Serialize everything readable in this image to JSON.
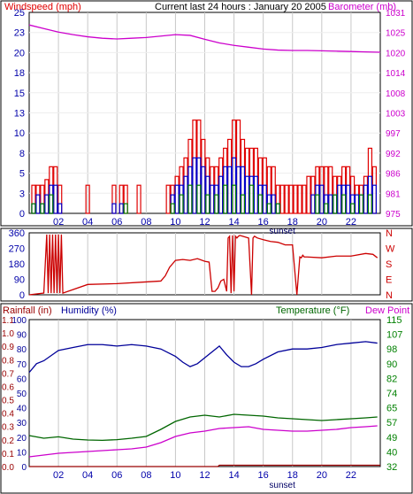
{
  "colors": {
    "wind_speed": "#e00000",
    "wind_gust": "#0000cc",
    "wind_green": "#008000",
    "barometer": "#cc00cc",
    "direction": "#cc0000",
    "humidity": "#000099",
    "temperature": "#006600",
    "dew_point": "#cc00cc",
    "rainfall": "#990000",
    "label_green": "#008000",
    "grid": "#c8c8c8",
    "axis_text": "#0000aa"
  },
  "top_panel": {
    "left_title": "Windspeed (mph)",
    "center_title": "Current last 24 hours : January 20 2005",
    "right_title": "Barometer (mb)",
    "left_ticks": [
      "0",
      "3",
      "5",
      "8",
      "10",
      "13",
      "15",
      "18",
      "20",
      "23",
      "25"
    ],
    "right_ticks": [
      "975",
      "981",
      "986",
      "992",
      "997",
      "1003",
      "1008",
      "1014",
      "1020",
      "1025",
      "1031"
    ],
    "x_ticks": [
      "02",
      "04",
      "06",
      "08",
      "10",
      "12",
      "14",
      "16",
      "18",
      "20",
      "22"
    ],
    "sunset_label": "sunset"
  },
  "mid_panel": {
    "left_ticks": [
      "0",
      "90",
      "180",
      "270",
      "360"
    ],
    "right_ticks": [
      "N",
      "E",
      "S",
      "W",
      "N"
    ]
  },
  "bottom_panel": {
    "left_title": "Rainfall (in)",
    "humidity_title": "Humidity (%)",
    "temp_title": "Temperature (°F)",
    "dew_title": "Dew Point",
    "rain_ticks": [
      "0.0",
      "0.1",
      "0.2",
      "0.3",
      "0.4",
      "0.5",
      "0.6",
      "0.7",
      "0.8",
      "0.9",
      "1.0",
      "1.1"
    ],
    "humidity_ticks": [
      "0",
      "10",
      "20",
      "30",
      "40",
      "50",
      "60",
      "70",
      "80",
      "90",
      "100"
    ],
    "right_ticks": [
      "32",
      "40",
      "49",
      "57",
      "65",
      "74",
      "82",
      "90",
      "98",
      "107",
      "115"
    ],
    "x_ticks": [
      "02",
      "04",
      "06",
      "08",
      "10",
      "12",
      "14",
      "16",
      "18",
      "20",
      "22"
    ],
    "sunset_label": "sunset"
  },
  "chart_data": [
    {
      "type": "bar",
      "title": "Current last 24 hours : January 20 2005",
      "xlabel": "",
      "ylabel": "Windspeed (mph)",
      "y2label": "Barometer (mb)",
      "x_unit": "hour",
      "xlim": [
        0,
        24
      ],
      "ylim": [
        0,
        25
      ],
      "y2lim": [
        975,
        1031
      ],
      "grid": true,
      "series": [
        {
          "name": "Windspeed (mph)",
          "kind": "bar",
          "x": [
            0.3,
            0.6,
            0.9,
            1.2,
            1.5,
            1.8,
            2.1,
            4.0,
            5.8,
            6.3,
            6.6,
            7.5,
            9.5,
            9.8,
            10.1,
            10.4,
            10.7,
            11.0,
            11.3,
            11.6,
            11.9,
            12.2,
            12.5,
            12.8,
            13.1,
            13.4,
            13.7,
            14.0,
            14.3,
            14.6,
            14.9,
            15.2,
            15.5,
            15.8,
            16.1,
            16.4,
            16.7,
            17.0,
            17.3,
            17.6,
            17.9,
            18.2,
            18.5,
            18.8,
            19.1,
            19.4,
            19.7,
            20.0,
            20.3,
            20.6,
            20.9,
            21.2,
            21.5,
            21.8,
            22.1,
            22.4,
            22.7,
            23.0,
            23.3,
            23.6
          ],
          "values": [
            3.5,
            3.5,
            3.5,
            4.2,
            5.8,
            5.8,
            3.5,
            3.5,
            3.5,
            3.5,
            3.5,
            3.5,
            3.5,
            3.5,
            4.6,
            5.8,
            6.9,
            9.2,
            11.6,
            11.6,
            9.2,
            6.9,
            5.8,
            5.8,
            6.9,
            8.1,
            9.2,
            11.6,
            11.6,
            9.2,
            8.1,
            8.1,
            8.1,
            6.9,
            6.9,
            5.8,
            5.8,
            3.5,
            3.5,
            3.5,
            3.5,
            3.5,
            3.5,
            3.5,
            4.6,
            4.6,
            5.8,
            5.8,
            5.8,
            5.8,
            4.6,
            4.6,
            5.8,
            5.8,
            4.6,
            3.5,
            3.5,
            4.6,
            8.1,
            5.8
          ]
        },
        {
          "name": "",
          "kind": "bar",
          "x": [
            0.3,
            0.6,
            0.9,
            1.2,
            1.5,
            1.8,
            2.1,
            5.8,
            6.3,
            9.8,
            10.1,
            10.4,
            10.7,
            11.0,
            11.3,
            11.6,
            11.9,
            12.2,
            12.5,
            12.8,
            13.1,
            13.4,
            13.7,
            14.0,
            14.3,
            14.6,
            14.9,
            15.2,
            15.5,
            15.8,
            16.1,
            16.4,
            16.7,
            17.0,
            19.4,
            19.7,
            20.0,
            20.3,
            20.6,
            20.9,
            21.2,
            21.5,
            21.8,
            22.1,
            22.4,
            22.7,
            23.0,
            23.3,
            23.6
          ],
          "values": [
            1.2,
            2.3,
            1.2,
            2.3,
            3.5,
            3.5,
            1.2,
            1.2,
            1.2,
            2.3,
            3.5,
            3.5,
            4.6,
            5.8,
            6.9,
            6.9,
            5.8,
            4.6,
            3.5,
            3.5,
            4.6,
            5.8,
            5.8,
            6.9,
            5.8,
            5.8,
            4.6,
            4.6,
            4.6,
            3.5,
            3.5,
            2.3,
            2.3,
            1.2,
            2.3,
            3.5,
            3.5,
            2.3,
            2.3,
            2.3,
            3.5,
            3.5,
            3.5,
            2.3,
            2.3,
            2.3,
            3.5,
            4.6,
            3.5
          ]
        },
        {
          "name": "",
          "kind": "bar",
          "x": [
            0.3,
            0.9,
            1.5,
            6.6,
            9.8,
            10.4,
            11.0,
            11.6,
            12.2,
            12.8,
            13.4,
            14.0,
            14.6,
            15.2,
            15.8,
            16.4,
            17.0,
            19.7,
            20.3,
            20.9,
            21.5,
            22.1,
            22.7,
            23.3
          ],
          "values": [
            1.2,
            1.2,
            2.3,
            1.2,
            1.2,
            2.3,
            3.5,
            3.5,
            2.3,
            2.3,
            3.5,
            3.5,
            2.3,
            3.5,
            2.3,
            1.2,
            1.2,
            2.3,
            1.2,
            2.3,
            2.3,
            1.2,
            2.3,
            2.3
          ]
        },
        {
          "name": "Barometer (mb)",
          "kind": "line",
          "axis": "right",
          "x": [
            0,
            1,
            2,
            3,
            4,
            5,
            6,
            7,
            8,
            9,
            10,
            11,
            12,
            13,
            14,
            15,
            16,
            17,
            18,
            19,
            20,
            21,
            22,
            23,
            24
          ],
          "values": [
            1027.5,
            1026.5,
            1025.5,
            1024.8,
            1024.2,
            1023.8,
            1023.6,
            1023.8,
            1024.0,
            1024.4,
            1024.8,
            1024.6,
            1023.5,
            1022.5,
            1021.8,
            1021.3,
            1020.8,
            1020.5,
            1020.4,
            1020.4,
            1020.3,
            1020.2,
            1020.1,
            1020.0,
            1019.9
          ]
        }
      ]
    },
    {
      "type": "line",
      "title": "",
      "xlabel": "",
      "ylabel": "",
      "xlim": [
        0,
        24
      ],
      "ylim": [
        0,
        360
      ],
      "grid": true,
      "series": [
        {
          "name": "",
          "x": [
            0.0,
            1.0,
            1.2,
            1.3,
            1.4,
            1.5,
            1.6,
            1.7,
            1.8,
            1.9,
            2.0,
            2.1,
            2.2,
            2.3,
            4.0,
            6.0,
            8.0,
            9.0,
            9.3,
            9.6,
            10.0,
            10.5,
            11.0,
            11.5,
            12.0,
            12.3,
            12.5,
            12.7,
            12.9,
            13.1,
            13.3,
            13.5,
            13.6,
            13.7,
            13.8,
            13.9,
            14.0,
            14.1,
            14.2,
            14.3,
            14.4,
            14.6,
            15.0,
            15.2,
            15.3,
            15.4,
            15.6,
            16.0,
            16.5,
            17.0,
            17.5,
            18.0,
            18.3,
            18.5,
            18.6,
            18.7,
            18.8,
            19.0,
            20.0,
            21.0,
            22.0,
            23.0,
            23.5,
            23.8
          ],
          "values": [
            0,
            10,
            350,
            10,
            350,
            10,
            350,
            10,
            350,
            10,
            350,
            10,
            350,
            10,
            60,
            65,
            75,
            80,
            110,
            160,
            200,
            205,
            200,
            210,
            195,
            190,
            20,
            20,
            40,
            80,
            90,
            20,
            330,
            340,
            10,
            345,
            20,
            340,
            330,
            340,
            345,
            340,
            330,
            0,
            330,
            340,
            330,
            320,
            310,
            305,
            290,
            290,
            0,
            220,
            215,
            230,
            220,
            220,
            215,
            225,
            225,
            240,
            235,
            215
          ]
        }
      ]
    },
    {
      "type": "line",
      "title": "",
      "xlabel": "",
      "ylabel": "Rainfall (in)",
      "y2label": "Temperature (°F)",
      "xlim": [
        0,
        24
      ],
      "ylim": [
        0.0,
        1.1
      ],
      "y2lim": [
        32,
        115
      ],
      "grid": true,
      "series": [
        {
          "name": "Humidity (%)",
          "axis": "humidity",
          "ylim": [
            0,
            100
          ],
          "x": [
            0,
            0.5,
            1,
            2,
            3,
            4,
            5,
            6,
            7,
            8,
            9,
            10,
            10.5,
            11,
            11.5,
            12,
            12.5,
            13,
            13.5,
            14,
            14.5,
            15,
            15.5,
            16,
            17,
            18,
            19,
            20,
            21,
            22,
            23,
            23.8
          ],
          "values": [
            64,
            70,
            72,
            79,
            81,
            83,
            83,
            82,
            83,
            82,
            80,
            75,
            71,
            68,
            70,
            74,
            78,
            82,
            76,
            71,
            68,
            68,
            70,
            73,
            78,
            80,
            80,
            81,
            83,
            84,
            85,
            84
          ]
        },
        {
          "name": "Temperature (°F)",
          "axis": "right",
          "x": [
            0,
            1,
            2,
            3,
            4,
            5,
            6,
            7,
            8,
            9,
            10,
            11,
            12,
            13,
            14,
            15,
            16,
            17,
            18,
            19,
            20,
            21,
            22,
            23,
            23.8
          ],
          "values": [
            49.5,
            48.0,
            48.8,
            47.5,
            47.0,
            46.8,
            47.2,
            48.0,
            49.0,
            53.0,
            57.5,
            60.0,
            61.0,
            60.0,
            61.5,
            61.0,
            60.5,
            59.5,
            59.0,
            58.5,
            58.0,
            58.5,
            59.0,
            59.5,
            60.0
          ]
        },
        {
          "name": "Dew Point",
          "axis": "right",
          "x": [
            0,
            1,
            2,
            3,
            4,
            5,
            6,
            7,
            8,
            9,
            10,
            11,
            12,
            13,
            14,
            15,
            16,
            17,
            18,
            19,
            20,
            21,
            22,
            23,
            23.8
          ],
          "values": [
            37.5,
            38.5,
            39.5,
            40.0,
            40.5,
            41.0,
            41.5,
            42.0,
            43.0,
            45.5,
            49.0,
            51.0,
            52.0,
            53.5,
            54.0,
            54.5,
            53.0,
            52.5,
            52.0,
            52.0,
            52.5,
            53.0,
            54.0,
            54.5,
            55.0
          ]
        },
        {
          "name": "Rainfall (in)",
          "axis": "left",
          "x": [
            0,
            12.9,
            13.0,
            24
          ],
          "values": [
            0.0,
            0.0,
            0.01,
            0.01
          ]
        }
      ]
    }
  ]
}
